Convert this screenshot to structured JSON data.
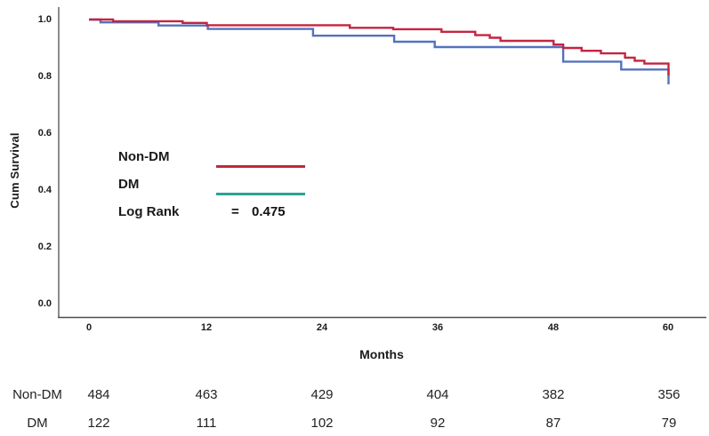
{
  "chart_data": {
    "type": "line",
    "subtype": "kaplan-meier-step",
    "title": "",
    "xlabel": "Months",
    "ylabel": "Cum Survival",
    "xlim": [
      0,
      64
    ],
    "ylim": [
      0.0,
      1.05
    ],
    "grid": false,
    "legend_position": "inside-left-middle",
    "x_ticks": [
      0,
      12,
      24,
      36,
      48,
      60
    ],
    "x_tick_labels": [
      "0",
      "12",
      "24",
      "36",
      "48",
      "60"
    ],
    "y_ticks": [
      1.0,
      0.8,
      0.6,
      0.4,
      0.2,
      0.0
    ],
    "y_tick_labels": [
      "1.0",
      "0.8",
      "0.6",
      "0.4",
      "0.2",
      "0.0"
    ],
    "axis_colors": {
      "y_axis": "#8c8c8c",
      "x_axis": "#4d4d4d"
    },
    "series": [
      {
        "name": "Non-DM",
        "curve_color": "#c4243f",
        "legend_color": "#bf2b38",
        "points": [
          [
            0,
            1.0
          ],
          [
            2.5,
            0.994
          ],
          [
            9.7,
            0.988
          ],
          [
            12.2,
            0.98
          ],
          [
            27,
            0.971
          ],
          [
            31.5,
            0.966
          ],
          [
            36.5,
            0.957
          ],
          [
            40,
            0.945
          ],
          [
            41.5,
            0.936
          ],
          [
            42.6,
            0.925
          ],
          [
            48.1,
            0.912
          ],
          [
            49.1,
            0.9
          ],
          [
            51,
            0.89
          ],
          [
            53,
            0.881
          ],
          [
            55.5,
            0.866
          ],
          [
            56.5,
            0.855
          ],
          [
            57.5,
            0.845
          ],
          [
            60,
            0.803
          ]
        ]
      },
      {
        "name": "DM",
        "curve_color": "#5472bd",
        "legend_color": "#2ba198",
        "points": [
          [
            0,
            1.0
          ],
          [
            1.2,
            0.99
          ],
          [
            7.2,
            0.979
          ],
          [
            12.3,
            0.967
          ],
          [
            23.2,
            0.943
          ],
          [
            31.6,
            0.922
          ],
          [
            35.8,
            0.903
          ],
          [
            49.1,
            0.852
          ],
          [
            55.1,
            0.824
          ],
          [
            60,
            0.772
          ]
        ]
      }
    ],
    "log_rank": {
      "label": "Log Rank",
      "eq": "=",
      "value": "0.475"
    }
  },
  "risk_table": {
    "rows": [
      {
        "label": "Non-DM",
        "values": [
          484,
          463,
          429,
          404,
          382,
          356
        ]
      },
      {
        "label": "DM",
        "values": [
          122,
          111,
          102,
          92,
          87,
          79
        ]
      }
    ]
  }
}
